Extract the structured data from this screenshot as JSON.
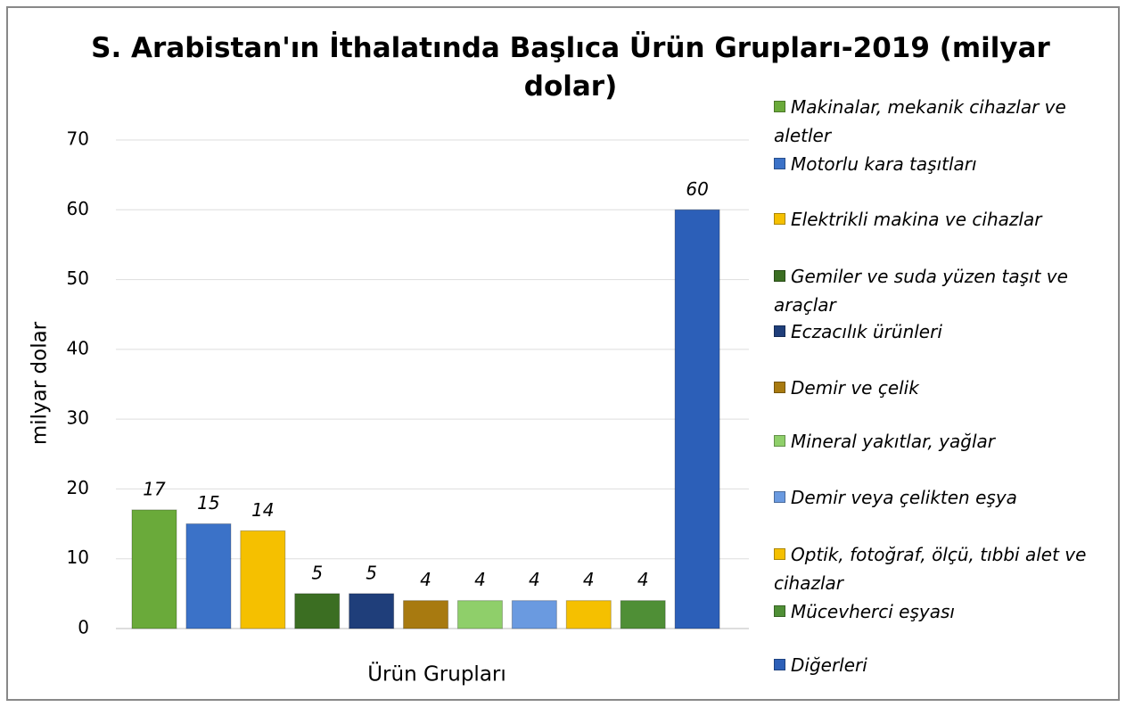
{
  "chart_data": {
    "type": "bar",
    "title": "S. Arabistan'ın İthalatında Başlıca Ürün Grupları-2019 (milyar dolar)",
    "x_label": "Ürün Grupları",
    "y_label": "milyar dolar",
    "categories": [
      null
    ],
    "series": [
      {
        "name": "Makinalar, mekanik cihazlar ve aletler",
        "color": "#6aaa3a",
        "values": [
          17
        ]
      },
      {
        "name": "Motorlu kara taşıtları",
        "color": "#3b72c8",
        "values": [
          15
        ]
      },
      {
        "name": "Elektrikli makina ve cihazlar",
        "color": "#f5c000",
        "values": [
          14
        ]
      },
      {
        "name": "Gemiler ve suda yüzen taşıt ve araçlar",
        "color": "#3b6e22",
        "values": [
          5
        ]
      },
      {
        "name": "Eczacılık ürünleri",
        "color": "#1f3e7a",
        "values": [
          5
        ]
      },
      {
        "name": "Demir ve çelik",
        "color": "#a87a10",
        "values": [
          4
        ]
      },
      {
        "name": "Mineral yakıtlar, yağlar",
        "color": "#8fcf6a",
        "values": [
          4
        ]
      },
      {
        "name": "Demir veya çelikten eşya",
        "color": "#6a9ae0",
        "values": [
          4
        ]
      },
      {
        "name": "Optik, fotoğraf, ölçü, tıbbi alet ve cihazlar",
        "color": "#f5c000",
        "values": [
          4
        ]
      },
      {
        "name": "Mücevherci eşyası",
        "color": "#4f8f36",
        "values": [
          4
        ]
      },
      {
        "name": "Diğerleri",
        "color": "#2c5fb8",
        "values": [
          60
        ]
      }
    ],
    "ylim": [
      0,
      70
    ],
    "yticks": [
      0,
      10,
      20,
      30,
      40,
      50,
      60,
      70
    ],
    "grid": true,
    "legend": "right"
  }
}
